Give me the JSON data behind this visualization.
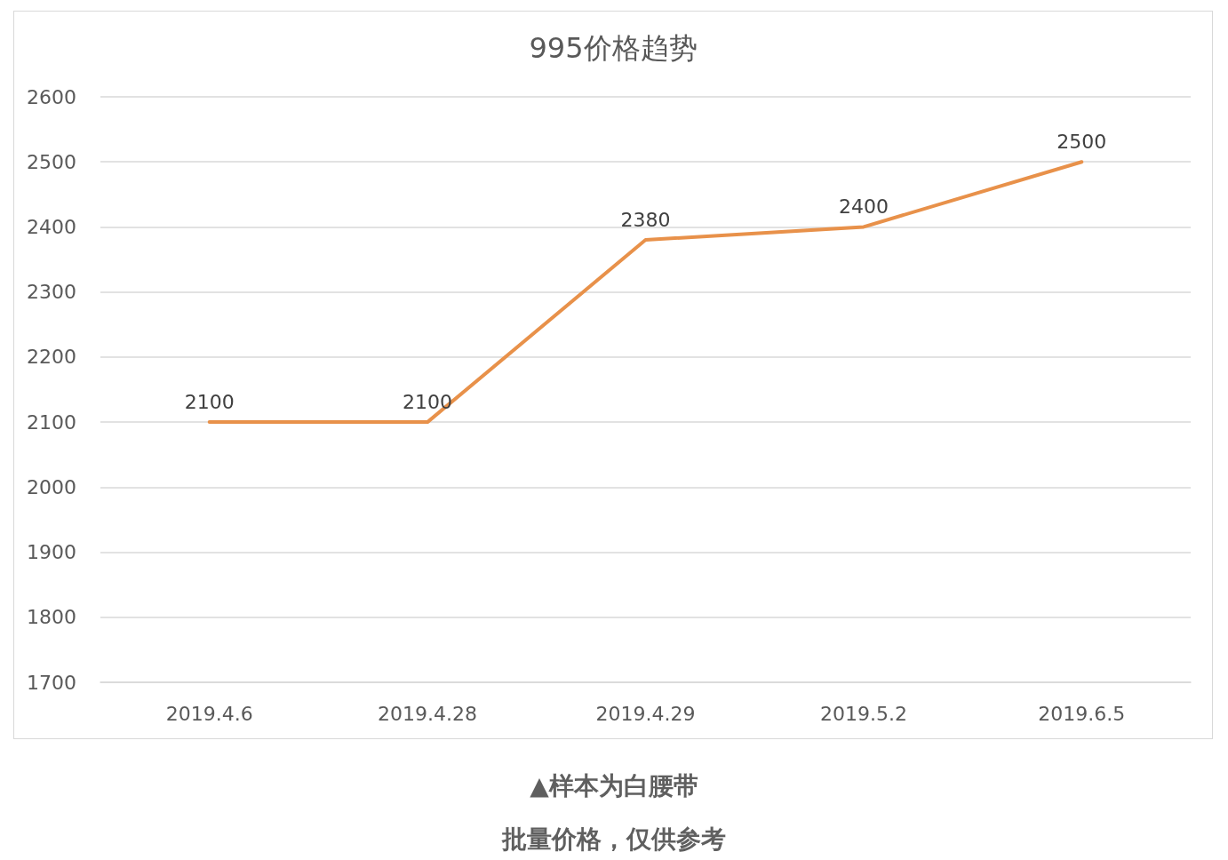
{
  "chart_data": {
    "type": "line",
    "title": "995价格趋势",
    "categories": [
      "2019.4.6",
      "2019.4.28",
      "2019.4.29",
      "2019.5.2",
      "2019.6.5"
    ],
    "series": [
      {
        "color": "#e8914a",
        "values": [
          2100,
          2100,
          2380,
          2400,
          2500
        ]
      }
    ],
    "ylim": [
      1700,
      2600
    ],
    "yticks": [
      1700,
      1800,
      1900,
      2000,
      2100,
      2200,
      2300,
      2400,
      2500,
      2600
    ],
    "grid": "y",
    "marker": "none",
    "line_style": "solid",
    "data_labels": true,
    "annotations": [
      "▲样本为白腰带",
      "批量价格，仅供参考"
    ]
  }
}
